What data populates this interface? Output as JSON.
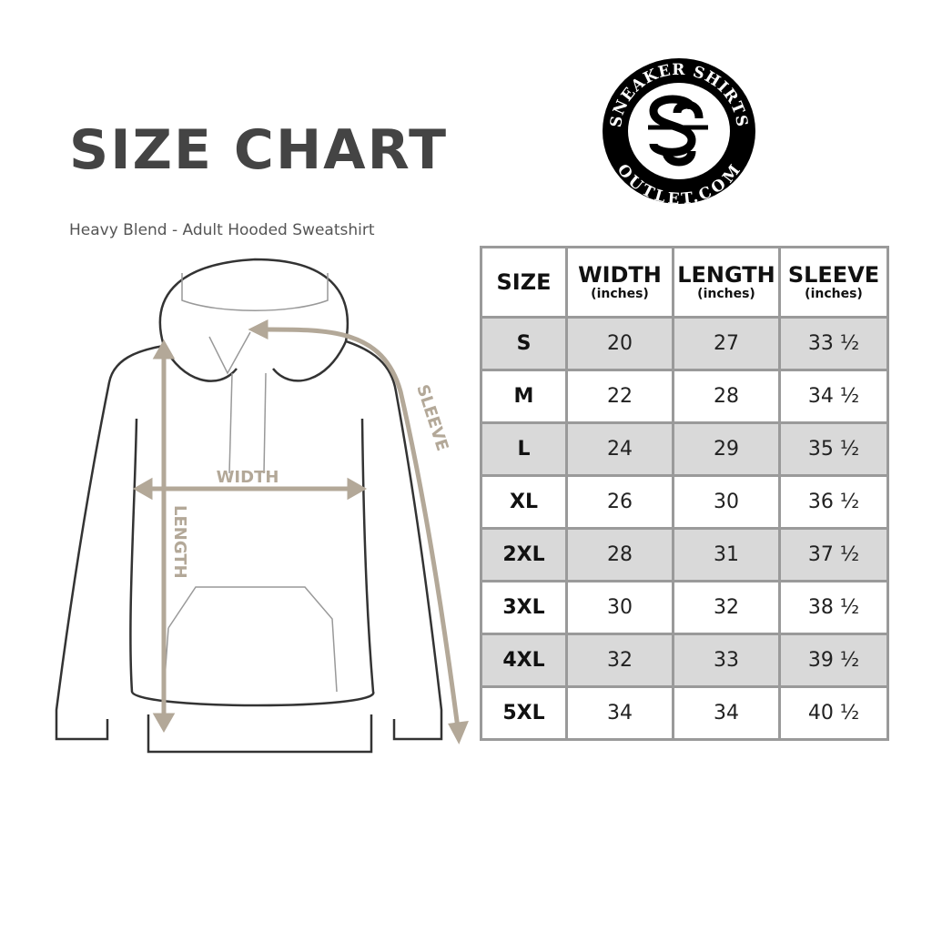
{
  "title": "SIZE CHART",
  "subtitle": "Heavy Blend - Adult Hooded Sweatshirt",
  "logo": {
    "top_text": "SNEAKER SHIRTS",
    "bottom_text": "OUTLET.COM",
    "monogram": "SS"
  },
  "diagram": {
    "width_label": "WIDTH",
    "length_label": "LENGTH",
    "sleeve_label": "SLEEVE",
    "accent_color": "#b3a898"
  },
  "table": {
    "headers": [
      {
        "label": "SIZE",
        "unit": ""
      },
      {
        "label": "WIDTH",
        "unit": "(inches)"
      },
      {
        "label": "LENGTH",
        "unit": "(inches)"
      },
      {
        "label": "SLEEVE",
        "unit": "(inches)"
      }
    ],
    "rows": [
      [
        "S",
        "20",
        "27",
        "33 ½"
      ],
      [
        "M",
        "22",
        "28",
        "34 ½"
      ],
      [
        "L",
        "24",
        "29",
        "35 ½"
      ],
      [
        "XL",
        "26",
        "30",
        "36 ½"
      ],
      [
        "2XL",
        "28",
        "31",
        "37 ½"
      ],
      [
        "3XL",
        "30",
        "32",
        "38 ½"
      ],
      [
        "4XL",
        "32",
        "33",
        "39 ½"
      ],
      [
        "5XL",
        "34",
        "34",
        "40 ½"
      ]
    ]
  }
}
